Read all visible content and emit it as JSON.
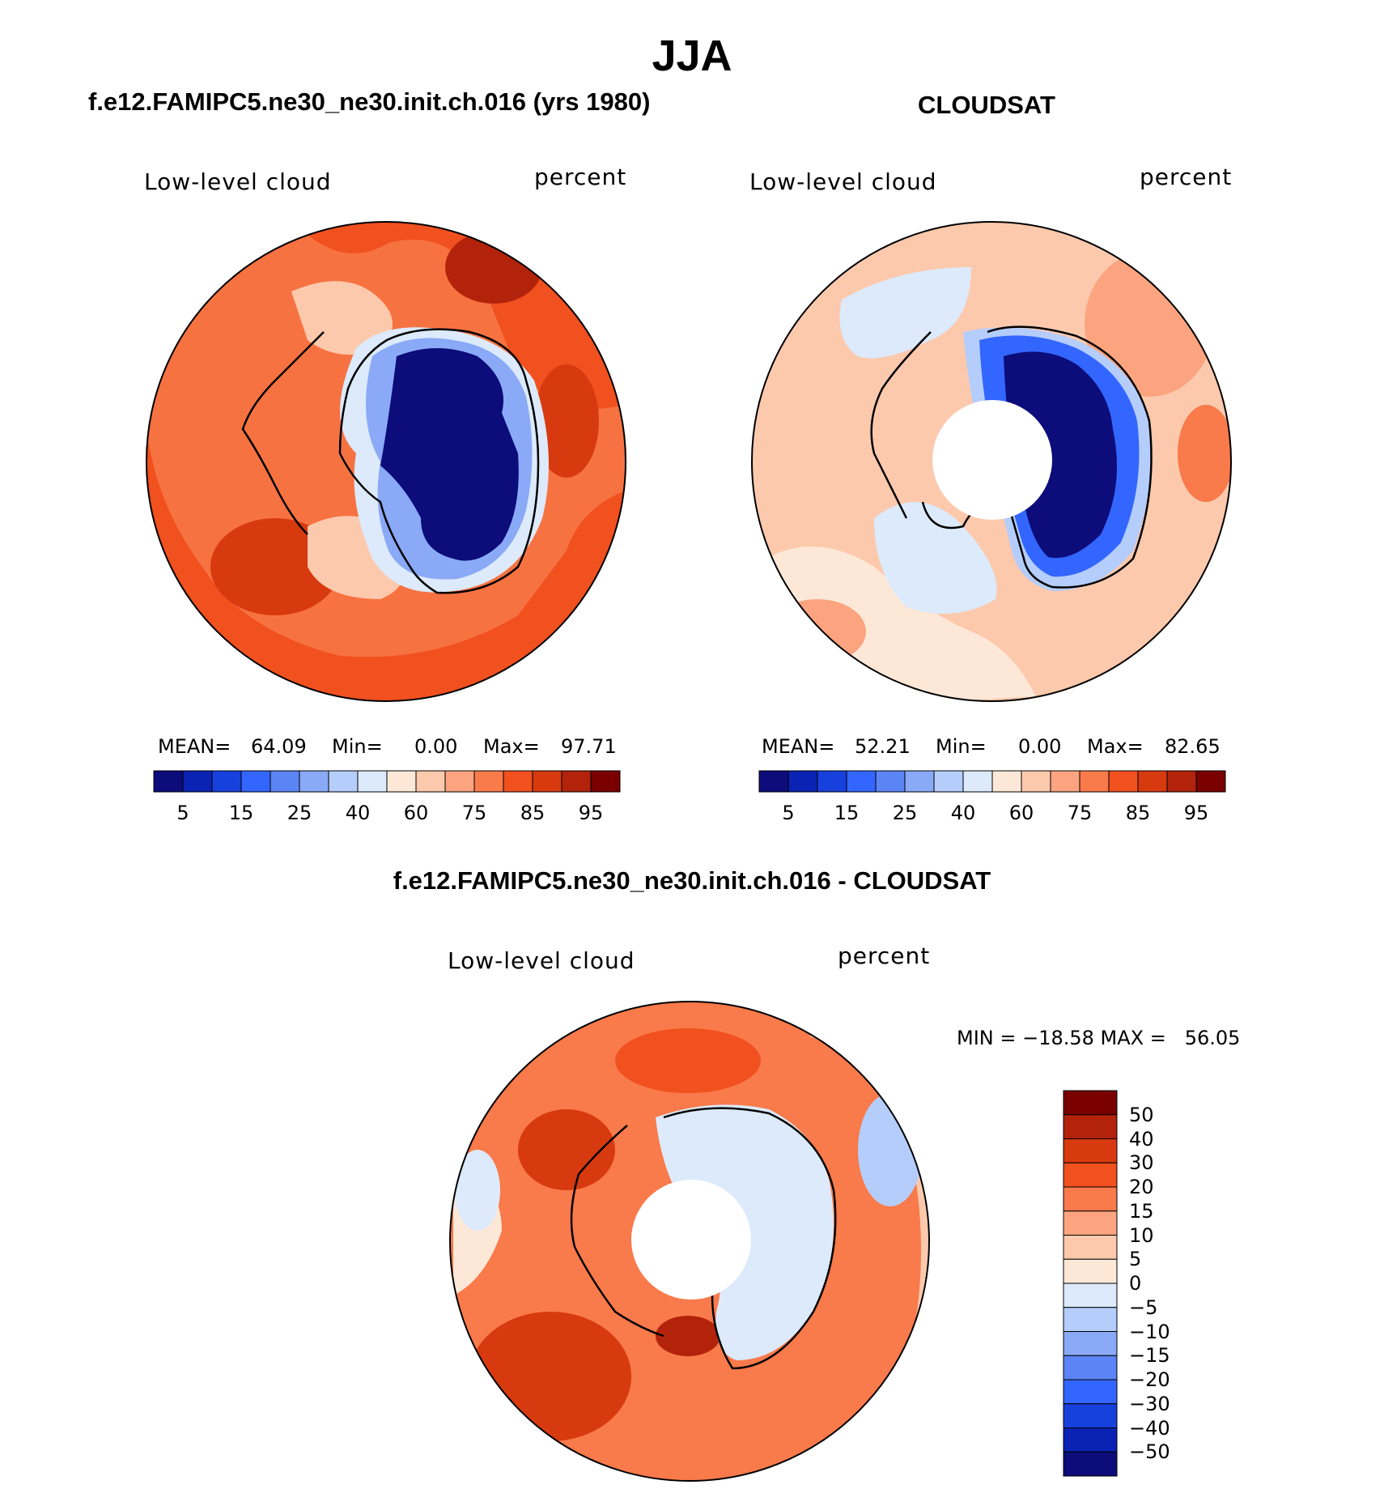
{
  "figure": {
    "title": "JJA",
    "model_title": "f.e12.FAMIPC5.ne30_ne30.init.ch.016 (yrs 1980)",
    "obs_title": "CLOUDSAT",
    "diff_title": "f.e12.FAMIPC5.ne30_ne30.init.ch.016 - CLOUDSAT"
  },
  "panels": {
    "model": {
      "variable": "Low-level cloud",
      "units": "percent",
      "mean_label": "MEAN=",
      "mean": "64.09",
      "min_label": "Min=",
      "min": "0.00",
      "max_label": "Max=",
      "max": "97.71"
    },
    "obs": {
      "variable": "Low-level cloud",
      "units": "percent",
      "mean_label": "MEAN=",
      "mean": "52.21",
      "min_label": "Min=",
      "min": "0.00",
      "max_label": "Max=",
      "max": "82.65"
    },
    "diff": {
      "variable": "Low-level cloud",
      "units": "percent",
      "minmax_text": "MIN = −18.58 MAX =   56.05"
    }
  },
  "colorbar_abs": {
    "ticks": [
      "5",
      "15",
      "25",
      "40",
      "60",
      "75",
      "85",
      "95"
    ],
    "colors": [
      "#0c0c7a",
      "#0a23b4",
      "#1741dd",
      "#3366ff",
      "#5b84f5",
      "#8aaaf7",
      "#b5cdfa",
      "#dceafb",
      "#fde8d8",
      "#fcc9ad",
      "#fba47f",
      "#f97a4a",
      "#f1501f",
      "#d83a10",
      "#b3230b",
      "#7a0000"
    ]
  },
  "colorbar_diff": {
    "ticks": [
      "50",
      "40",
      "30",
      "20",
      "15",
      "10",
      "5",
      "0",
      "−5",
      "−10",
      "−15",
      "−20",
      "−30",
      "−40",
      "−50"
    ],
    "colors": [
      "#7a0000",
      "#b3230b",
      "#d83a10",
      "#f1501f",
      "#f97a4a",
      "#fba47f",
      "#fcc9ad",
      "#fde8d8",
      "#dceafb",
      "#b5cdfa",
      "#8aaaf7",
      "#5b84f5",
      "#3366ff",
      "#1741dd",
      "#0a23b4",
      "#0c0c7a"
    ]
  }
}
